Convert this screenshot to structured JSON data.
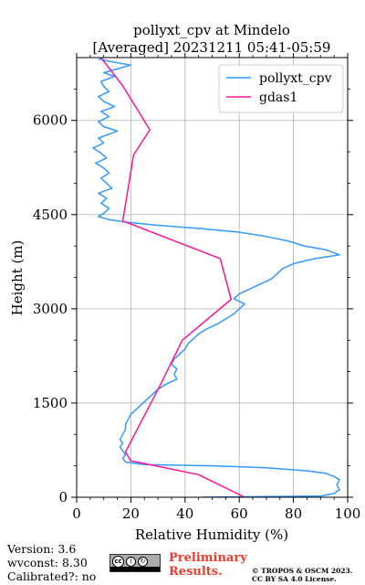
{
  "chart_data": {
    "type": "line",
    "title": [
      "pollyxt_cpv at Mindelo",
      "[Averaged] 20231211 05:41-05:59"
    ],
    "xlabel": "Relative Humidity (%)",
    "ylabel": "Height (m)",
    "xlim": [
      0,
      100
    ],
    "ylim": [
      0,
      7000
    ],
    "xticks": [
      "0",
      "20",
      "40",
      "60",
      "80",
      "100"
    ],
    "yticks": [
      "0",
      "1500",
      "3000",
      "4500",
      "6000"
    ],
    "grid": true,
    "legend_position": "top-right",
    "series": [
      {
        "name": "pollyxt_cpv",
        "color": "#3399ff",
        "points": [
          [
            46,
            0
          ],
          [
            90,
            20
          ],
          [
            95,
            60
          ],
          [
            97,
            120
          ],
          [
            96,
            200
          ],
          [
            97,
            280
          ],
          [
            95,
            330
          ],
          [
            92,
            380
          ],
          [
            85,
            420
          ],
          [
            70,
            470
          ],
          [
            50,
            500
          ],
          [
            25,
            520
          ],
          [
            18,
            560
          ],
          [
            17,
            620
          ],
          [
            18,
            680
          ],
          [
            17,
            740
          ],
          [
            16,
            800
          ],
          [
            17,
            860
          ],
          [
            16,
            920
          ],
          [
            17,
            1000
          ],
          [
            18,
            1080
          ],
          [
            18,
            1160
          ],
          [
            19,
            1240
          ],
          [
            20,
            1320
          ],
          [
            22,
            1400
          ],
          [
            24,
            1480
          ],
          [
            26,
            1560
          ],
          [
            28,
            1640
          ],
          [
            30,
            1720
          ],
          [
            33,
            1800
          ],
          [
            37,
            1880
          ],
          [
            36,
            1960
          ],
          [
            37,
            2040
          ],
          [
            35,
            2120
          ],
          [
            36,
            2200
          ],
          [
            38,
            2280
          ],
          [
            40,
            2360
          ],
          [
            41,
            2440
          ],
          [
            43,
            2520
          ],
          [
            45,
            2600
          ],
          [
            48,
            2680
          ],
          [
            52,
            2760
          ],
          [
            55,
            2840
          ],
          [
            58,
            2920
          ],
          [
            60,
            3000
          ],
          [
            62,
            3080
          ],
          [
            58,
            3160
          ],
          [
            60,
            3240
          ],
          [
            64,
            3320
          ],
          [
            68,
            3400
          ],
          [
            72,
            3480
          ],
          [
            74,
            3560
          ],
          [
            76,
            3640
          ],
          [
            80,
            3720
          ],
          [
            88,
            3800
          ],
          [
            97,
            3860
          ],
          [
            92,
            3940
          ],
          [
            84,
            4000
          ],
          [
            78,
            4080
          ],
          [
            70,
            4150
          ],
          [
            60,
            4220
          ],
          [
            45,
            4280
          ],
          [
            30,
            4330
          ],
          [
            18,
            4380
          ],
          [
            12,
            4420
          ],
          [
            8,
            4470
          ],
          [
            10,
            4520
          ],
          [
            12,
            4600
          ],
          [
            9,
            4680
          ],
          [
            11,
            4760
          ],
          [
            8,
            4840
          ],
          [
            13,
            4920
          ],
          [
            11,
            5000
          ],
          [
            9,
            5080
          ],
          [
            12,
            5160
          ],
          [
            10,
            5240
          ],
          [
            7,
            5320
          ],
          [
            11,
            5400
          ],
          [
            9,
            5480
          ],
          [
            6,
            5560
          ],
          [
            10,
            5640
          ],
          [
            8,
            5720
          ],
          [
            12,
            5780
          ],
          [
            15,
            5830
          ],
          [
            10,
            5900
          ],
          [
            8,
            5980
          ],
          [
            12,
            6060
          ],
          [
            9,
            6140
          ],
          [
            14,
            6220
          ],
          [
            10,
            6300
          ],
          [
            8,
            6380
          ],
          [
            12,
            6460
          ],
          [
            10,
            6540
          ],
          [
            9,
            6620
          ],
          [
            14,
            6700
          ],
          [
            10,
            6760
          ],
          [
            15,
            6820
          ],
          [
            20,
            6880
          ],
          [
            12,
            6940
          ],
          [
            8,
            6980
          ]
        ]
      },
      {
        "name": "gdas1",
        "color": "#ff1493",
        "points": [
          [
            62,
            0
          ],
          [
            45,
            360
          ],
          [
            20,
            580
          ],
          [
            18,
            720
          ],
          [
            31,
            1800
          ],
          [
            39,
            2500
          ],
          [
            57,
            3150
          ],
          [
            53,
            3800
          ],
          [
            17,
            4400
          ],
          [
            21,
            5450
          ],
          [
            27,
            5850
          ],
          [
            17,
            6550
          ],
          [
            9,
            7000
          ]
        ]
      }
    ]
  },
  "footer": {
    "version": "Version: 3.6",
    "wvconst": "wvconst:   8.30",
    "calibrated": "Calibrated?: no",
    "preliminary": [
      "Preliminary",
      "Results."
    ],
    "copyright": [
      "© TROPOS & OSCM 2023.",
      "CC BY SA 4.0 License."
    ],
    "badge_label": "BY SA"
  }
}
